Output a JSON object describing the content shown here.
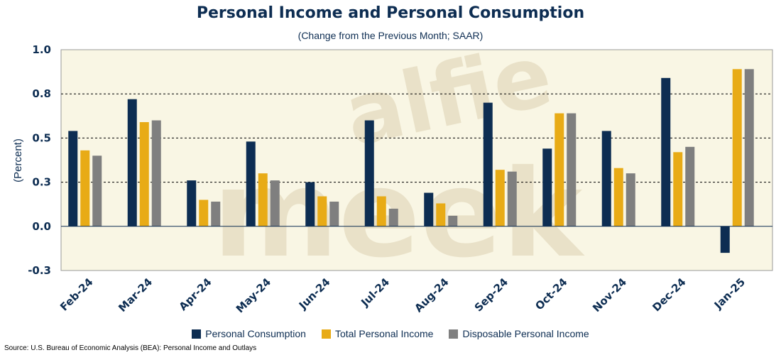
{
  "chart_data": {
    "type": "bar",
    "title": "Personal Income and Personal Consumption",
    "subtitle": "(Change from the Previous Month; SAAR)",
    "ylabel": "(Percent)",
    "ylim": [
      -0.25,
      1.0
    ],
    "yticks": [
      {
        "value": 1.0,
        "label": "1.0"
      },
      {
        "value": 0.75,
        "label": "0.8"
      },
      {
        "value": 0.5,
        "label": "0.5"
      },
      {
        "value": 0.25,
        "label": "0.3"
      },
      {
        "value": 0.0,
        "label": "0.0"
      },
      {
        "value": -0.25,
        "label": "-0.3"
      }
    ],
    "gridlines": "dashed horizontal",
    "legend_position": "bottom",
    "categories": [
      "Feb-24",
      "Mar-24",
      "Apr-24",
      "May-24",
      "Jun-24",
      "Jul-24",
      "Aug-24",
      "Sep-24",
      "Oct-24",
      "Nov-24",
      "Dec-24",
      "Jan-25"
    ],
    "series": [
      {
        "name": "Personal Consumption",
        "color": "#0d2d52",
        "values": [
          0.54,
          0.72,
          0.26,
          0.48,
          0.25,
          0.6,
          0.19,
          0.7,
          0.44,
          0.54,
          0.84,
          -0.15
        ]
      },
      {
        "name": "Total Personal Income",
        "color": "#e8ab16",
        "values": [
          0.43,
          0.59,
          0.15,
          0.3,
          0.17,
          0.17,
          0.13,
          0.32,
          0.64,
          0.33,
          0.42,
          0.89
        ]
      },
      {
        "name": "Disposable Personal Income",
        "color": "#7f7f7f",
        "values": [
          0.4,
          0.6,
          0.14,
          0.26,
          0.14,
          0.1,
          0.06,
          0.31,
          0.64,
          0.3,
          0.45,
          0.89
        ]
      }
    ],
    "watermark": [
      "alfie",
      "meek"
    ]
  },
  "source": "Source: U.S. Bureau of Economic Analysis (BEA): Personal Income and Outlays",
  "colors": {
    "plot_background": "#f9f6e4",
    "axis_text": "#0d2d52"
  }
}
